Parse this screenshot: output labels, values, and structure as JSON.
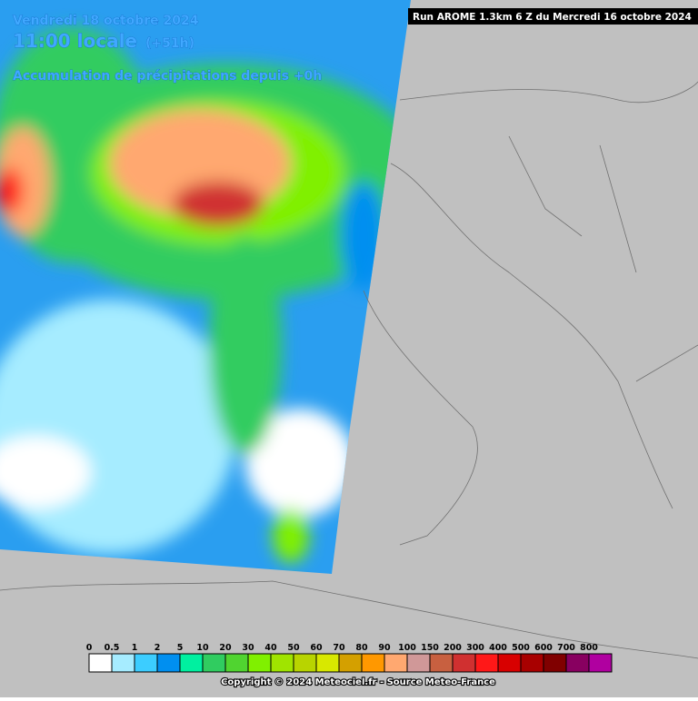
{
  "header": {
    "date": "Vendredi 18 octobre 2024",
    "time": "11:00 locale",
    "lead": "(+51h)",
    "product": "Accumulation de précipitations depuis +0h",
    "run": "Run AROME 1.3km 6 Z du Mercredi 16 octobre 2024"
  },
  "legend": {
    "values": [
      0,
      0.5,
      1,
      2,
      5,
      10,
      20,
      30,
      40,
      50,
      60,
      70,
      80,
      90,
      100,
      150,
      200,
      300,
      400,
      500,
      600,
      700,
      800
    ],
    "colors": [
      "#ffffff",
      "#a6ecff",
      "#3ccdff",
      "#008ff0",
      "#00f0a0",
      "#30cc60",
      "#50d430",
      "#80f000",
      "#a0e400",
      "#b8d400",
      "#d8e800",
      "#d4a000",
      "#ff9800",
      "#ffa870",
      "#d09898",
      "#c86040",
      "#d03030",
      "#ff1818",
      "#d80000",
      "#a80000",
      "#800000",
      "#880060",
      "#b000a0"
    ]
  },
  "footer": {
    "copyright": "Copyright © 2024 Meteociel.fr - Source Meteo-France"
  }
}
